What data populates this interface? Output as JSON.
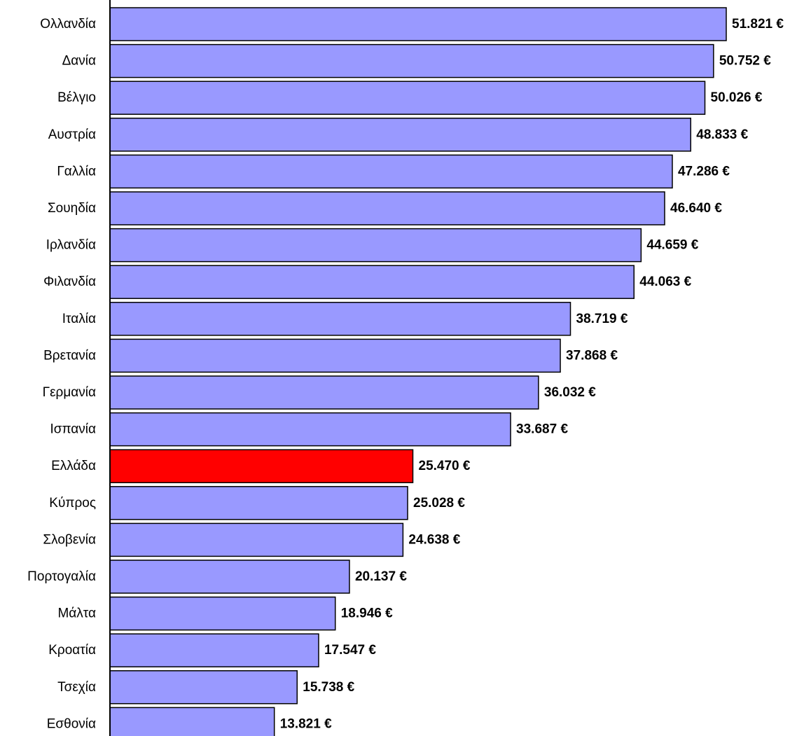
{
  "chart_data": {
    "type": "bar",
    "orientation": "horizontal",
    "categories": [
      "Ολλανδία",
      "Δανία",
      "Βέλγιο",
      "Αυστρία",
      "Γαλλία",
      "Σουηδία",
      "Ιρλανδία",
      "Φιλανδία",
      "Ιταλία",
      "Βρετανία",
      "Γερμανία",
      "Ισπανία",
      "Ελλάδα",
      "Κύπρος",
      "Σλοβενία",
      "Πορτογαλία",
      "Μάλτα",
      "Κροατία",
      "Τσεχία",
      "Εσθονία"
    ],
    "values": [
      51821,
      50752,
      50026,
      48833,
      47286,
      46640,
      44659,
      44063,
      38719,
      37868,
      36032,
      33687,
      25470,
      25028,
      24638,
      20137,
      18946,
      17547,
      15738,
      13821
    ],
    "value_labels": [
      "51.821 €",
      "50.752 €",
      "50.026 €",
      "48.833 €",
      "47.286 €",
      "46.640 €",
      "44.659 €",
      "44.063 €",
      "38.719 €",
      "37.868 €",
      "36.032 €",
      "33.687 €",
      "25.470 €",
      "25.028 €",
      "24.638 €",
      "20.137 €",
      "18.946 €",
      "17.547 €",
      "15.738 €",
      "13.821 €"
    ],
    "highlight_category": "Ελλάδα",
    "xlim": [
      0,
      51821
    ],
    "title": "",
    "xlabel": "",
    "ylabel": "",
    "grid": false,
    "legend": "none",
    "colors": {
      "bar": "#9999ff",
      "highlight": "#ff0000",
      "border": "#000000"
    }
  }
}
